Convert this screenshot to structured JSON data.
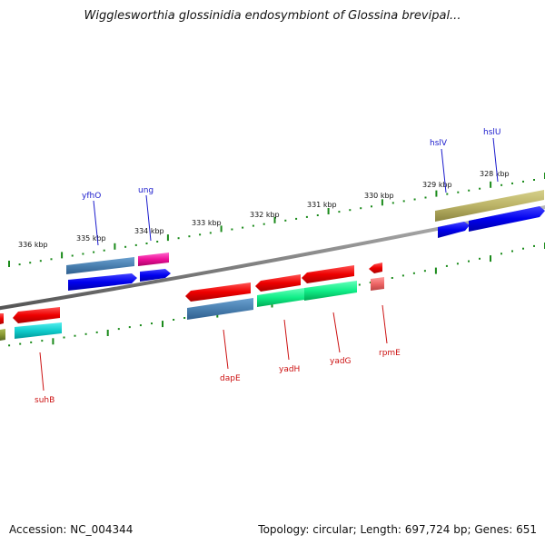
{
  "title": "Wigglesworthia glossinidia endosymbiont of Glossina brevipal...",
  "footer": {
    "accession": "Accession: NC_004344",
    "topology": "Topology: circular; Length: 697,724 bp; Genes: 651"
  },
  "ticks": [
    "336 kbp",
    "335 kbp",
    "334 kbp",
    "333 kbp",
    "332 kbp",
    "331 kbp",
    "330 kbp",
    "329 kbp",
    "328 kbp"
  ],
  "genes": {
    "forward": [
      "yfhO",
      "ung",
      "hslV",
      "hslU"
    ],
    "reverse": [
      "suhB",
      "dapE",
      "yadH",
      "yadG",
      "rpmE"
    ]
  },
  "colors": {
    "forward_label": "#1a1acc",
    "reverse_label": "#cc1111",
    "tick": "#1a8a1a",
    "backbone": "#888888"
  }
}
